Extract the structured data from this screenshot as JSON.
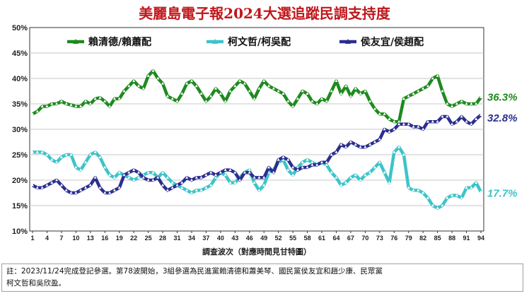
{
  "chart_data": {
    "type": "line",
    "title": "美麗島電子報2024大選追蹤民調支持度",
    "xlabel": "調查波次（對應時間見甘特圖）",
    "ylabel": "",
    "ylim": [
      10,
      50
    ],
    "yticks": [
      "10%",
      "15%",
      "20%",
      "25%",
      "30%",
      "35%",
      "40%",
      "45%",
      "50%"
    ],
    "xticks": [
      "1",
      "4",
      "7",
      "10",
      "13",
      "16",
      "19",
      "22",
      "25",
      "28",
      "31",
      "34",
      "37",
      "40",
      "43",
      "46",
      "49",
      "52",
      "55",
      "58",
      "61",
      "64",
      "67",
      "70",
      "73",
      "76",
      "79",
      "82",
      "85",
      "88",
      "91",
      "94"
    ],
    "x": [
      1,
      2,
      3,
      4,
      5,
      6,
      7,
      8,
      9,
      10,
      11,
      12,
      13,
      14,
      15,
      16,
      17,
      18,
      19,
      20,
      21,
      22,
      23,
      24,
      25,
      26,
      27,
      28,
      29,
      30,
      31,
      32,
      33,
      34,
      35,
      36,
      37,
      38,
      39,
      40,
      41,
      42,
      43,
      44,
      45,
      46,
      47,
      48,
      49,
      50,
      51,
      52,
      53,
      54,
      55,
      56,
      57,
      58,
      59,
      60,
      61,
      62,
      63,
      64,
      65,
      66,
      67,
      68,
      69,
      70,
      71,
      72,
      73,
      74,
      75,
      76,
      77,
      78,
      79,
      80,
      81,
      82,
      83,
      84,
      85,
      86,
      87,
      88,
      89,
      90,
      91,
      92,
      93,
      94
    ],
    "grid": true,
    "legend_position": "top",
    "series": [
      {
        "name": "賴清德/賴蕭配",
        "color": "#1e8a1e",
        "end_label": "36.3%",
        "values": [
          33,
          33.5,
          34.5,
          34.5,
          35,
          35,
          35.5,
          35,
          34.8,
          34.5,
          34.5,
          35.5,
          35,
          36,
          36.2,
          35.5,
          34.5,
          36,
          36,
          37.5,
          38.5,
          39.5,
          38.5,
          38,
          40.5,
          41.5,
          40,
          39,
          36.5,
          36,
          35.5,
          37,
          39,
          39.5,
          38.5,
          37,
          35.5,
          36.5,
          38,
          37,
          35.5,
          37.5,
          38.5,
          39.5,
          39,
          37.5,
          36,
          38,
          39.5,
          38.5,
          38,
          37.5,
          37,
          35.5,
          34.5,
          36,
          37.5,
          37,
          35.5,
          35,
          36,
          35.5,
          37.5,
          39.5,
          37,
          38.5,
          36.5,
          38,
          37,
          37.5,
          35.5,
          34,
          33,
          33,
          32,
          31.5,
          31.5,
          36,
          36.5,
          37,
          37.5,
          38,
          38.5,
          40,
          40.5,
          37.5,
          35,
          34.5,
          35,
          35.5,
          35,
          35,
          35,
          36.3
        ]
      },
      {
        "name": "柯文哲/柯吳配",
        "color": "#3cc4c8",
        "end_label": "17.7%",
        "values": [
          25.5,
          25.5,
          25.5,
          25,
          24,
          23.5,
          24.5,
          25,
          25,
          22.5,
          22,
          23.5,
          25,
          25.5,
          24.5,
          22.5,
          21,
          20.5,
          21.5,
          21,
          20.5,
          20,
          20.5,
          21,
          21.5,
          21.5,
          20.5,
          21.5,
          20.5,
          19.5,
          19,
          18.5,
          18,
          17.5,
          18,
          18,
          18.5,
          19,
          20.5,
          21.5,
          21,
          19.5,
          19.5,
          20.5,
          21.5,
          22,
          19.5,
          18,
          19,
          21.5,
          22,
          23.5,
          24,
          22,
          21,
          22.5,
          23.5,
          24,
          23.5,
          23,
          23.5,
          23,
          21.5,
          20.5,
          19,
          19.5,
          20.5,
          21,
          20,
          21,
          21.5,
          22.5,
          23.5,
          21.5,
          19.5,
          25.5,
          26.5,
          25,
          18.5,
          18,
          18,
          17.5,
          16.5,
          15,
          14.5,
          15,
          16.5,
          17,
          17,
          16.5,
          18.5,
          18.5,
          19.5,
          17.7
        ]
      },
      {
        "name": "侯友宜/侯趙配",
        "color": "#2b2e8f",
        "end_label": "32.8%",
        "values": [
          19,
          18.5,
          18.5,
          19,
          19.5,
          20,
          19,
          18,
          17.5,
          17.5,
          18,
          18.5,
          19,
          20.5,
          18.5,
          17.5,
          17.5,
          18,
          18.5,
          21,
          21.5,
          22,
          21.5,
          20.5,
          20,
          20,
          20.5,
          19,
          18,
          18.5,
          19,
          19.5,
          20.5,
          20,
          20.5,
          20.5,
          21,
          21.5,
          21,
          21.5,
          22,
          22,
          21.5,
          20,
          21.5,
          21.5,
          20.5,
          20.5,
          20.5,
          22.5,
          21.5,
          24,
          24.5,
          24,
          22.5,
          22,
          22.5,
          22.5,
          23,
          23,
          23.5,
          23.5,
          25,
          25.5,
          27,
          26.5,
          27.5,
          27,
          26.5,
          26.5,
          27,
          27.5,
          28,
          30,
          29.5,
          30,
          31,
          31,
          31,
          30.5,
          30.5,
          30,
          31.5,
          31.5,
          31.5,
          32.5,
          32.5,
          31,
          31.5,
          32.5,
          31.5,
          31,
          32,
          32.8
        ]
      }
    ]
  },
  "note": {
    "line1": "註：2023/11/24完成登記參選。第78波開始，3組參選為民進黨賴清德和蕭美琴、國民黨侯友宜和趙少康、民眾黨",
    "line2": "柯文哲和吳欣盈。"
  }
}
